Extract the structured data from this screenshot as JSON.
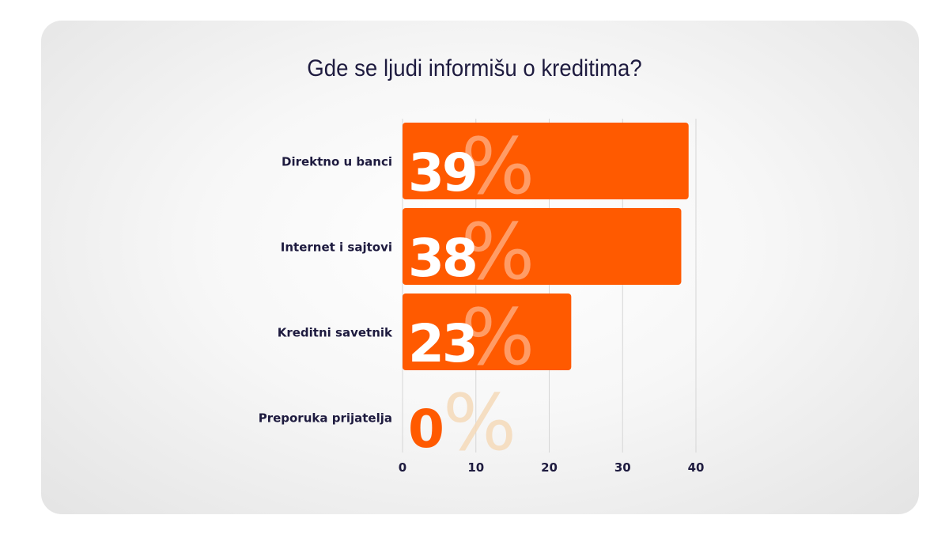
{
  "chart_data": {
    "type": "bar",
    "orientation": "horizontal",
    "title": "Gde se ljudi informišu o kreditima?",
    "categories": [
      "Direktno u banci",
      "Internet i sajtovi",
      "Kreditni savetnik",
      "Preporuka prijatelja"
    ],
    "values": [
      39,
      38,
      23,
      0
    ],
    "value_labels": [
      "39%",
      "38%",
      "23%",
      "0%"
    ],
    "xlim": [
      0,
      40
    ],
    "xticks": [
      "0",
      "10",
      "20",
      "30",
      "40"
    ],
    "grid": true,
    "legend": "none",
    "colors": {
      "bar": "#ff5a00",
      "value_text_on_bar": "#ffffff",
      "value_text_off_bar": "#ff5a00",
      "percent_on_bar": "#ffffff",
      "percent_off_bar": "#f5d9b8",
      "text": "#1e1b3f",
      "grid": "#d6d6d6"
    }
  }
}
